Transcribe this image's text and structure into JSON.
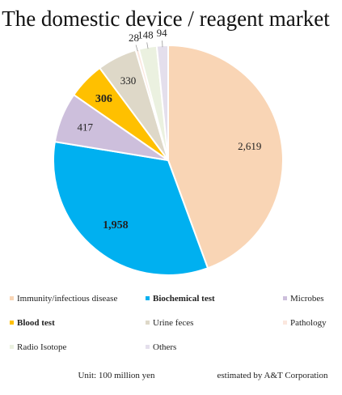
{
  "chart_data": {
    "type": "pie",
    "title": "The domestic device / reagent market",
    "series": [
      {
        "name": "Immunity/infectious disease",
        "value": 2619,
        "label": "2,619",
        "color": "#F9D5B5",
        "bold": false
      },
      {
        "name": "Biochemical test",
        "value": 1958,
        "label": "1,958",
        "color": "#00B0F0",
        "bold": true
      },
      {
        "name": "Microbes",
        "value": 417,
        "label": "417",
        "color": "#CDBFDC",
        "bold": false
      },
      {
        "name": "Blood test",
        "value": 306,
        "label": "306",
        "color": "#FFC000",
        "bold": true
      },
      {
        "name": "Urine feces",
        "value": 330,
        "label": "330",
        "color": "#DED8C8",
        "bold": false
      },
      {
        "name": "Pathology",
        "value": 28,
        "label": "28",
        "color": "#FBE7DE",
        "bold": false
      },
      {
        "name": "Radio Isotope",
        "value": 148,
        "label": "148",
        "color": "#EBF1E0",
        "bold": false
      },
      {
        "name": "Others",
        "value": 94,
        "label": "94",
        "color": "#E4DFEC",
        "bold": false
      }
    ],
    "legend_placement": "bottom",
    "unit_note": "Unit: 100 million yen",
    "source_note": "estimated by A&T Corporation"
  }
}
